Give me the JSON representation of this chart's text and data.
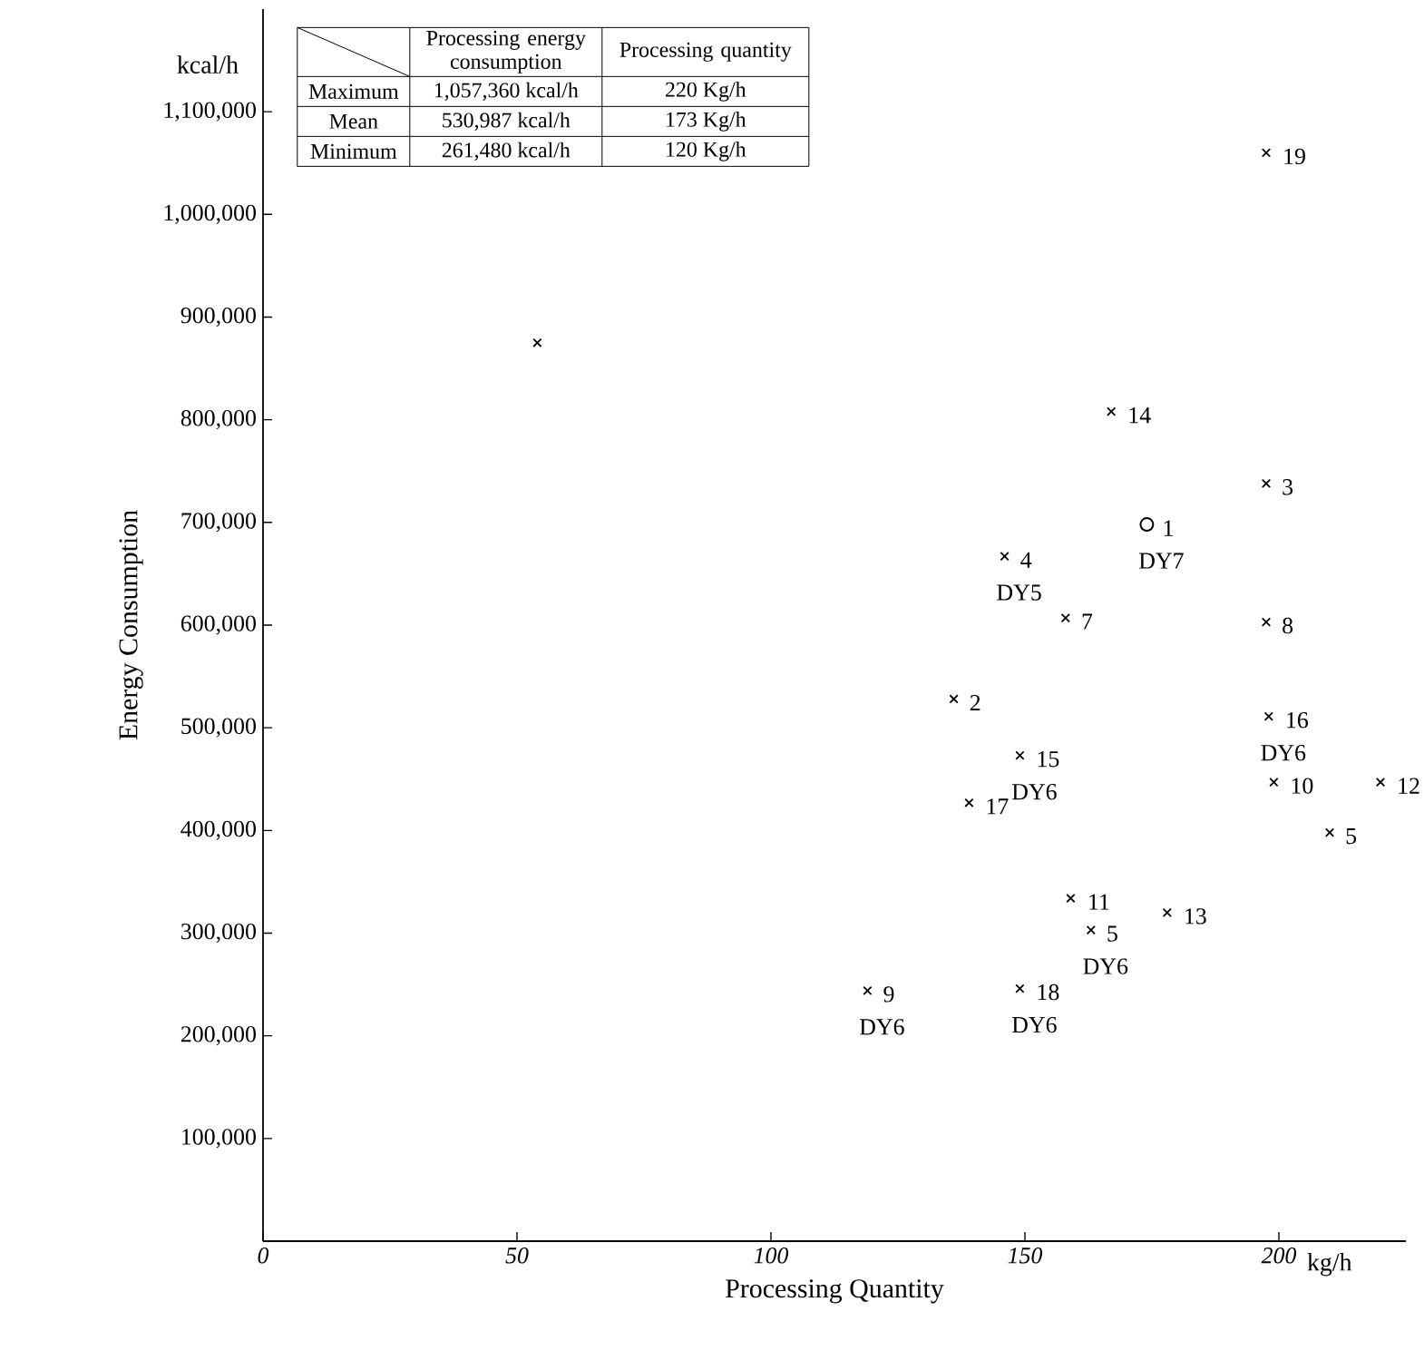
{
  "chart_data": {
    "type": "scatter",
    "xlabel": "Processing Quantity",
    "ylabel": "Energy Consumption",
    "xlim": [
      0,
      225
    ],
    "ylim": [
      0,
      1200000
    ],
    "xticks": [
      0,
      50,
      100,
      150,
      200
    ],
    "yticks": [
      {
        "value": 100000,
        "label": "100,000"
      },
      {
        "value": 200000,
        "label": "200,000"
      },
      {
        "value": 300000,
        "label": "300,000"
      },
      {
        "value": 400000,
        "label": "400,000"
      },
      {
        "value": 500000,
        "label": "500,000"
      },
      {
        "value": 600000,
        "label": "600,000"
      },
      {
        "value": 700000,
        "label": "700,000"
      },
      {
        "value": 800000,
        "label": "800,000"
      },
      {
        "value": 900000,
        "label": "900,000"
      },
      {
        "value": 1000000,
        "label": "1,000,000"
      },
      {
        "value": 1100000,
        "label": "1,100,000"
      }
    ],
    "grid": false,
    "series": [
      {
        "color": "#000000",
        "marker": "cross",
        "x": [
          54,
          197.5,
          167,
          197.5,
          146,
          158,
          197.5,
          136,
          198,
          149,
          199,
          220,
          139,
          210,
          159,
          178,
          163,
          149,
          119
        ],
        "values": [
          875000,
          1060000,
          808000,
          738000,
          667000,
          607000,
          603000,
          528000,
          511000,
          473000,
          447000,
          447000,
          427000,
          398000,
          334000,
          320000,
          303000,
          246000,
          244000
        ]
      },
      {
        "color": "#000000",
        "marker": "circle",
        "x": [
          174
        ],
        "values": [
          698000
        ]
      }
    ],
    "annotations": [
      "kcal/h",
      "kg/h",
      "Processing energy consumption",
      "Processing quantity",
      "Maximum",
      "1,057,360 kcal/h",
      "220 Kg/h",
      "Mean",
      "530,987 kcal/h",
      "173 Kg/h",
      "Minimum",
      "261,480 kcal/h",
      "120 Kg/h",
      {
        "text": "19",
        "x": 197.5,
        "y": 1060000
      },
      {
        "text": "14",
        "x": 167,
        "y": 808000
      },
      {
        "text": "3",
        "x": 197.5,
        "y": 738000
      },
      {
        "text": "4",
        "x": 146,
        "y": 667000
      },
      {
        "text": "DY5",
        "x": 146,
        "y": 667000
      },
      {
        "text": "1",
        "x": 174,
        "y": 698000
      },
      {
        "text": "DY7",
        "x": 174,
        "y": 698000
      },
      {
        "text": "7",
        "x": 158,
        "y": 607000
      },
      {
        "text": "8",
        "x": 197.5,
        "y": 603000
      },
      {
        "text": "16",
        "x": 198,
        "y": 511000
      },
      {
        "text": "DY6",
        "x": 198,
        "y": 511000
      },
      {
        "text": "2",
        "x": 136,
        "y": 528000
      },
      {
        "text": "15",
        "x": 149,
        "y": 473000
      },
      {
        "text": "DY6",
        "x": 149,
        "y": 473000
      },
      {
        "text": "10",
        "x": 199,
        "y": 447000
      },
      {
        "text": "12",
        "x": 220,
        "y": 447000
      },
      {
        "text": "17",
        "x": 139,
        "y": 427000
      },
      {
        "text": "5",
        "x": 210,
        "y": 398000
      },
      {
        "text": "11",
        "x": 159,
        "y": 334000
      },
      {
        "text": "13",
        "x": 178,
        "y": 320000
      },
      {
        "text": "5",
        "x": 163,
        "y": 303000
      },
      {
        "text": "DY6",
        "x": 163,
        "y": 303000
      },
      {
        "text": "9",
        "x": 119,
        "y": 244000
      },
      {
        "text": "DY6",
        "x": 119,
        "y": 244000
      },
      {
        "text": "18",
        "x": 149,
        "y": 246000
      },
      {
        "text": "DY6",
        "x": 149,
        "y": 246000
      }
    ]
  }
}
